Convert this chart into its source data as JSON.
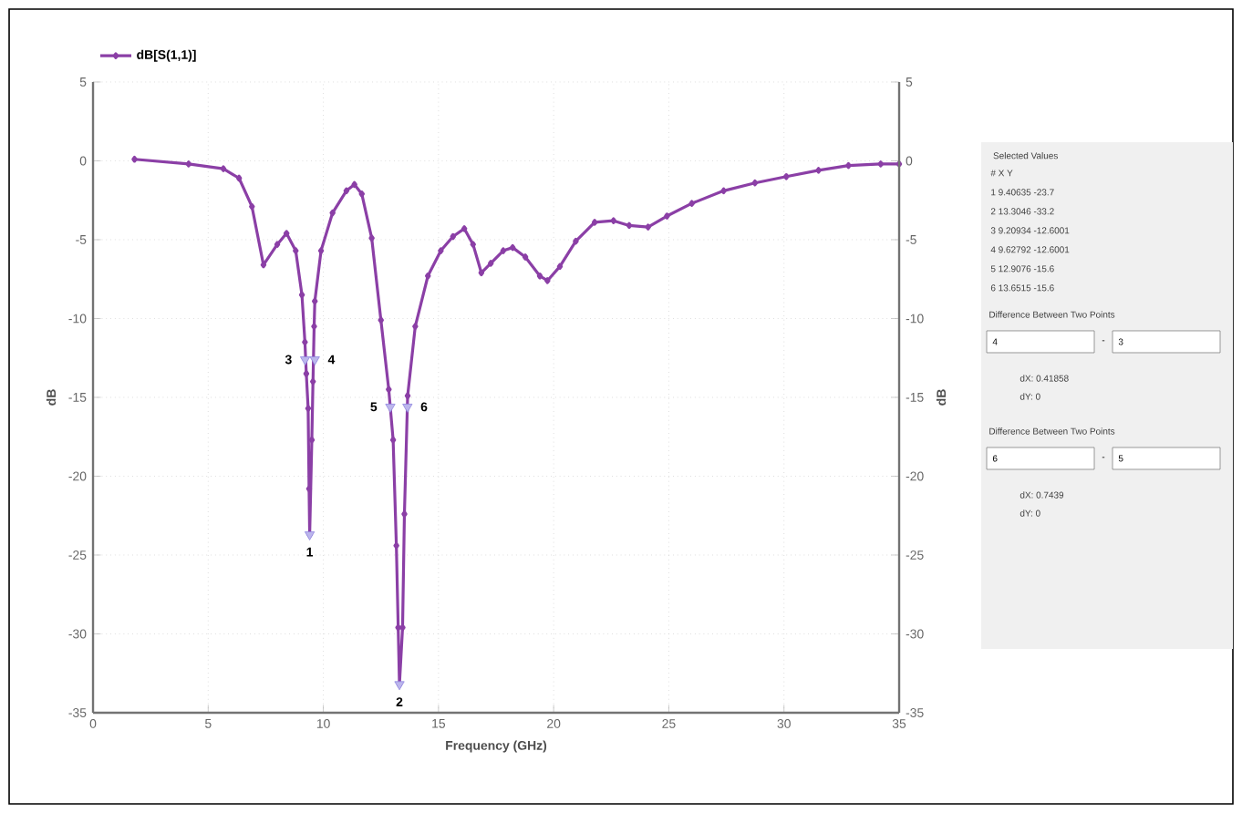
{
  "chart_data": [
    {
      "type": "line",
      "xlabel": "Frequency (GHz)",
      "ylabel": "dB",
      "y2label": "dB",
      "xlim": [
        0,
        35
      ],
      "xticks": [
        0,
        5,
        10,
        15,
        20,
        25,
        30,
        35
      ],
      "ylim": [
        -35,
        5
      ],
      "yticks": [
        -35,
        -30,
        -25,
        -20,
        -15,
        -10,
        -5,
        0,
        5
      ],
      "y2lim": [
        -35,
        5
      ],
      "y2ticks": [
        -35,
        -30,
        -25,
        -20,
        -15,
        -10,
        -5,
        0,
        5
      ],
      "grid": true,
      "legend": "top left",
      "series": [
        {
          "name": "dB[S(1,1)]",
          "color": "#8b3fa6",
          "marker": "diamond",
          "x": [
            1.8,
            4.15,
            5.66,
            6.34,
            6.9,
            7.4,
            8.0,
            8.4,
            8.8,
            9.07,
            9.2,
            9.26,
            9.34,
            9.38,
            9.40635,
            9.5,
            9.55,
            9.6,
            9.63,
            9.9,
            10.4,
            11.0,
            11.35,
            11.67,
            12.1,
            12.5,
            12.84,
            13.03,
            13.17,
            13.25,
            13.3046,
            13.44,
            13.52,
            13.66,
            13.99,
            14.54,
            15.1,
            15.63,
            16.12,
            16.5,
            16.86,
            17.27,
            17.81,
            18.22,
            18.77,
            19.4,
            19.73,
            20.27,
            20.96,
            21.78,
            22.6,
            23.28,
            24.1,
            24.92,
            26.0,
            27.38,
            28.74,
            30.1,
            31.5,
            32.8,
            34.2,
            35
          ],
          "values": [
            0.1,
            -0.2,
            -0.5,
            -1.1,
            -2.9,
            -6.6,
            -5.3,
            -4.6,
            -5.7,
            -8.5,
            -11.5,
            -13.5,
            -15.7,
            -20.8,
            -23.7,
            -17.7,
            -14.0,
            -10.5,
            -8.9,
            -5.7,
            -3.3,
            -1.9,
            -1.5,
            -2.1,
            -4.9,
            -10.1,
            -14.5,
            -17.7,
            -24.4,
            -29.6,
            -33.2,
            -29.6,
            -22.4,
            -14.9,
            -10.5,
            -7.3,
            -5.7,
            -4.8,
            -4.3,
            -5.3,
            -7.1,
            -6.5,
            -5.7,
            -5.5,
            -6.1,
            -7.3,
            -7.6,
            -6.7,
            -5.1,
            -3.9,
            -3.8,
            -4.1,
            -4.2,
            -3.5,
            -2.7,
            -1.9,
            -1.4,
            -1.0,
            -0.6,
            -0.3,
            -0.2,
            -0.2
          ]
        },
        {
          "type": "scatter",
          "color": "#8f86e0",
          "marker": "triangle",
          "x": [
            9.40635,
            13.3046,
            9.20934,
            9.62792,
            12.9076,
            13.6515
          ],
          "values": [
            -23.7,
            -33.2,
            -12.6001,
            -12.6001,
            -15.6,
            -15.6
          ]
        }
      ],
      "annotations": [
        {
          "text": "1",
          "x": 9.40635,
          "y": -23.7
        },
        {
          "text": "2",
          "x": 13.3046,
          "y": -33.2
        },
        {
          "text": "3",
          "x": 9.20934,
          "y": -12.6001
        },
        {
          "text": "4",
          "x": 9.62792,
          "y": -12.6001
        },
        {
          "text": "5",
          "x": 12.9076,
          "y": -15.6
        },
        {
          "text": "6",
          "x": 13.6515,
          "y": -15.6
        }
      ]
    },
    {
      "type": "other",
      "title": "Selected Values",
      "annotations": [
        "# X Y",
        "1 9.40635 -23.7",
        "2 13.3046 -33.2",
        "3 9.20934 -12.6001",
        "4 9.62792 -12.6001",
        "5 12.9076 -15.6",
        "6 13.6515 -15.6",
        "Difference Between Two Points",
        "4",
        "-",
        "3",
        "dX: 0.41858",
        "dY: 0",
        "Difference Between Two Points",
        "6",
        "-",
        "5",
        "dX: 0.7439",
        "dY: 0"
      ]
    }
  ]
}
